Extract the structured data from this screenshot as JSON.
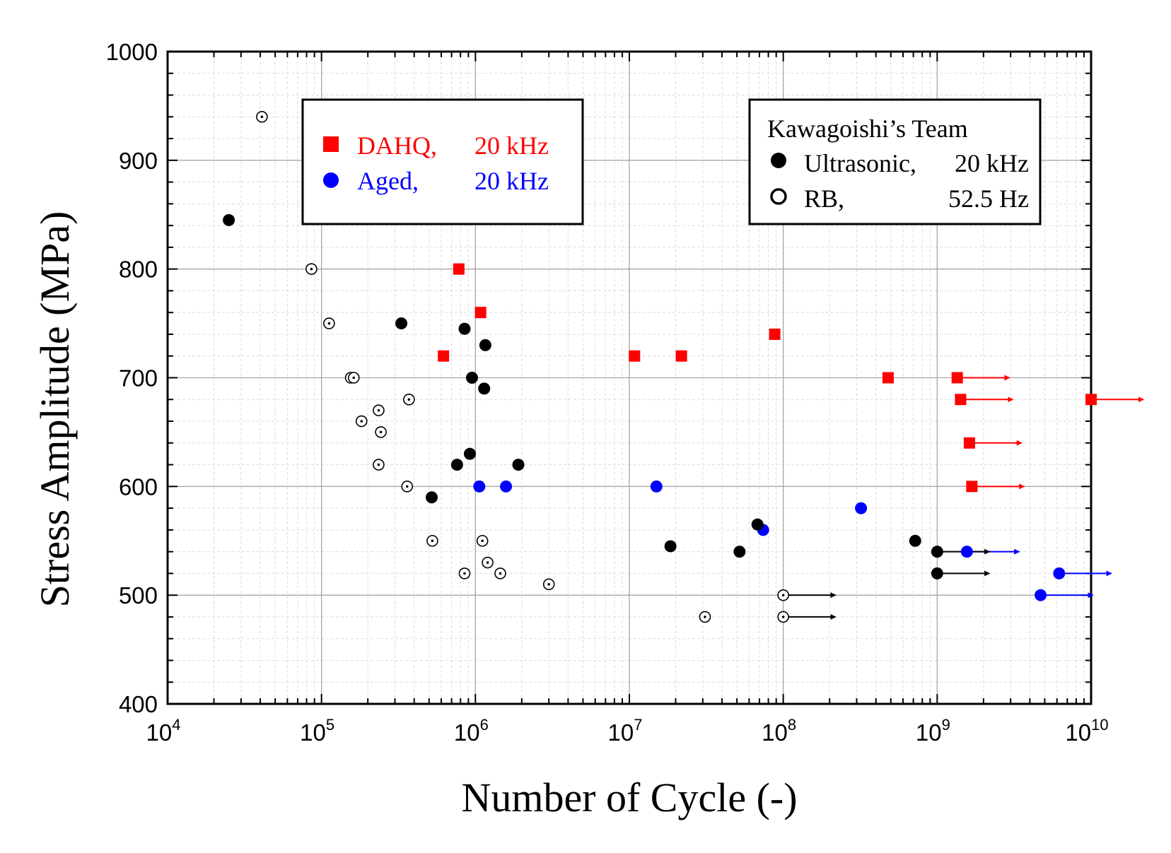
{
  "chart_data": {
    "type": "scatter",
    "xlabel": "Number of Cycle (-)",
    "ylabel": "Stress Amplitude (MPa)",
    "xscale": "log",
    "xlim": [
      10000,
      10000000000
    ],
    "ylim": [
      400,
      1000
    ],
    "grid": true,
    "x_ticks": [
      {
        "base": "10",
        "exp": "4"
      },
      {
        "base": "10",
        "exp": "5"
      },
      {
        "base": "10",
        "exp": "6"
      },
      {
        "base": "10",
        "exp": "7"
      },
      {
        "base": "10",
        "exp": "8"
      },
      {
        "base": "10",
        "exp": "9"
      },
      {
        "base": "10",
        "exp": "10"
      }
    ],
    "y_ticks": [
      "400",
      "500",
      "600",
      "700",
      "800",
      "900",
      "1000"
    ],
    "legend_left": {
      "position": "top-center-left",
      "entries": [
        {
          "series": "dahq",
          "label": "DAHQ,",
          "freq": "20 kHz"
        },
        {
          "series": "aged",
          "label": "Aged,",
          "freq": "20 kHz"
        }
      ]
    },
    "legend_right": {
      "position": "top-right",
      "title": "Kawagoishi’s Team",
      "entries": [
        {
          "series": "ultrasonic",
          "label": "Ultrasonic,",
          "freq": "20 kHz"
        },
        {
          "series": "rb",
          "label": "RB,",
          "freq": "52.5 Hz"
        }
      ]
    },
    "series": [
      {
        "id": "dahq",
        "name": "DAHQ, 20 kHz",
        "marker": "square-filled",
        "color": "#ff0000",
        "points": [
          {
            "x": 780000,
            "y": 800
          },
          {
            "x": 1080000,
            "y": 760
          },
          {
            "x": 620000,
            "y": 720
          },
          {
            "x": 10800000,
            "y": 720
          },
          {
            "x": 21800000,
            "y": 720
          },
          {
            "x": 88000000,
            "y": 740
          },
          {
            "x": 480000000,
            "y": 700
          },
          {
            "x": 1350000000,
            "y": 700,
            "runout": true
          },
          {
            "x": 1420000000,
            "y": 680,
            "runout": true
          },
          {
            "x": 10000000000,
            "y": 680,
            "runout": true
          },
          {
            "x": 1620000000,
            "y": 640,
            "runout": true
          },
          {
            "x": 1680000000,
            "y": 600,
            "runout": true
          }
        ]
      },
      {
        "id": "aged",
        "name": "Aged, 20 kHz",
        "marker": "circle-filled",
        "color": "#0000ff",
        "points": [
          {
            "x": 1060000,
            "y": 600
          },
          {
            "x": 1580000,
            "y": 600
          },
          {
            "x": 15000000,
            "y": 600
          },
          {
            "x": 320000000,
            "y": 580
          },
          {
            "x": 74000000,
            "y": 560
          },
          {
            "x": 1560000000,
            "y": 540,
            "runout": true
          },
          {
            "x": 6200000000,
            "y": 520,
            "runout": true
          },
          {
            "x": 4700000000,
            "y": 500,
            "runout": true
          }
        ]
      },
      {
        "id": "ultrasonic",
        "name": "Ultrasonic, 20 kHz",
        "marker": "circle-filled",
        "color": "#000000",
        "points": [
          {
            "x": 25000,
            "y": 845
          },
          {
            "x": 330000,
            "y": 750
          },
          {
            "x": 850000,
            "y": 745
          },
          {
            "x": 1160000,
            "y": 730
          },
          {
            "x": 950000,
            "y": 700
          },
          {
            "x": 1140000,
            "y": 690
          },
          {
            "x": 920000,
            "y": 630
          },
          {
            "x": 760000,
            "y": 620
          },
          {
            "x": 1900000,
            "y": 620
          },
          {
            "x": 520000,
            "y": 590
          },
          {
            "x": 68000000,
            "y": 565
          },
          {
            "x": 18500000,
            "y": 545
          },
          {
            "x": 52000000,
            "y": 540
          },
          {
            "x": 720000000,
            "y": 550
          },
          {
            "x": 1000000000,
            "y": 540,
            "runout": true
          },
          {
            "x": 1000000000,
            "y": 520,
            "runout": true
          }
        ]
      },
      {
        "id": "rb",
        "name": "RB, 52.5 Hz",
        "marker": "circle-open-dot",
        "color": "#000000",
        "points": [
          {
            "x": 41000,
            "y": 940
          },
          {
            "x": 86000,
            "y": 800
          },
          {
            "x": 112000,
            "y": 750
          },
          {
            "x": 155000,
            "y": 700
          },
          {
            "x": 162000,
            "y": 700
          },
          {
            "x": 370000,
            "y": 680
          },
          {
            "x": 235000,
            "y": 670
          },
          {
            "x": 182000,
            "y": 660
          },
          {
            "x": 243000,
            "y": 650
          },
          {
            "x": 235000,
            "y": 620
          },
          {
            "x": 360000,
            "y": 600
          },
          {
            "x": 525000,
            "y": 550
          },
          {
            "x": 1110000,
            "y": 550
          },
          {
            "x": 1200000,
            "y": 530
          },
          {
            "x": 850000,
            "y": 520
          },
          {
            "x": 1450000,
            "y": 520
          },
          {
            "x": 3000000,
            "y": 510
          },
          {
            "x": 31000000,
            "y": 480
          },
          {
            "x": 100000000,
            "y": 500,
            "runout": true
          },
          {
            "x": 100000000,
            "y": 480,
            "runout": true
          }
        ]
      }
    ]
  }
}
